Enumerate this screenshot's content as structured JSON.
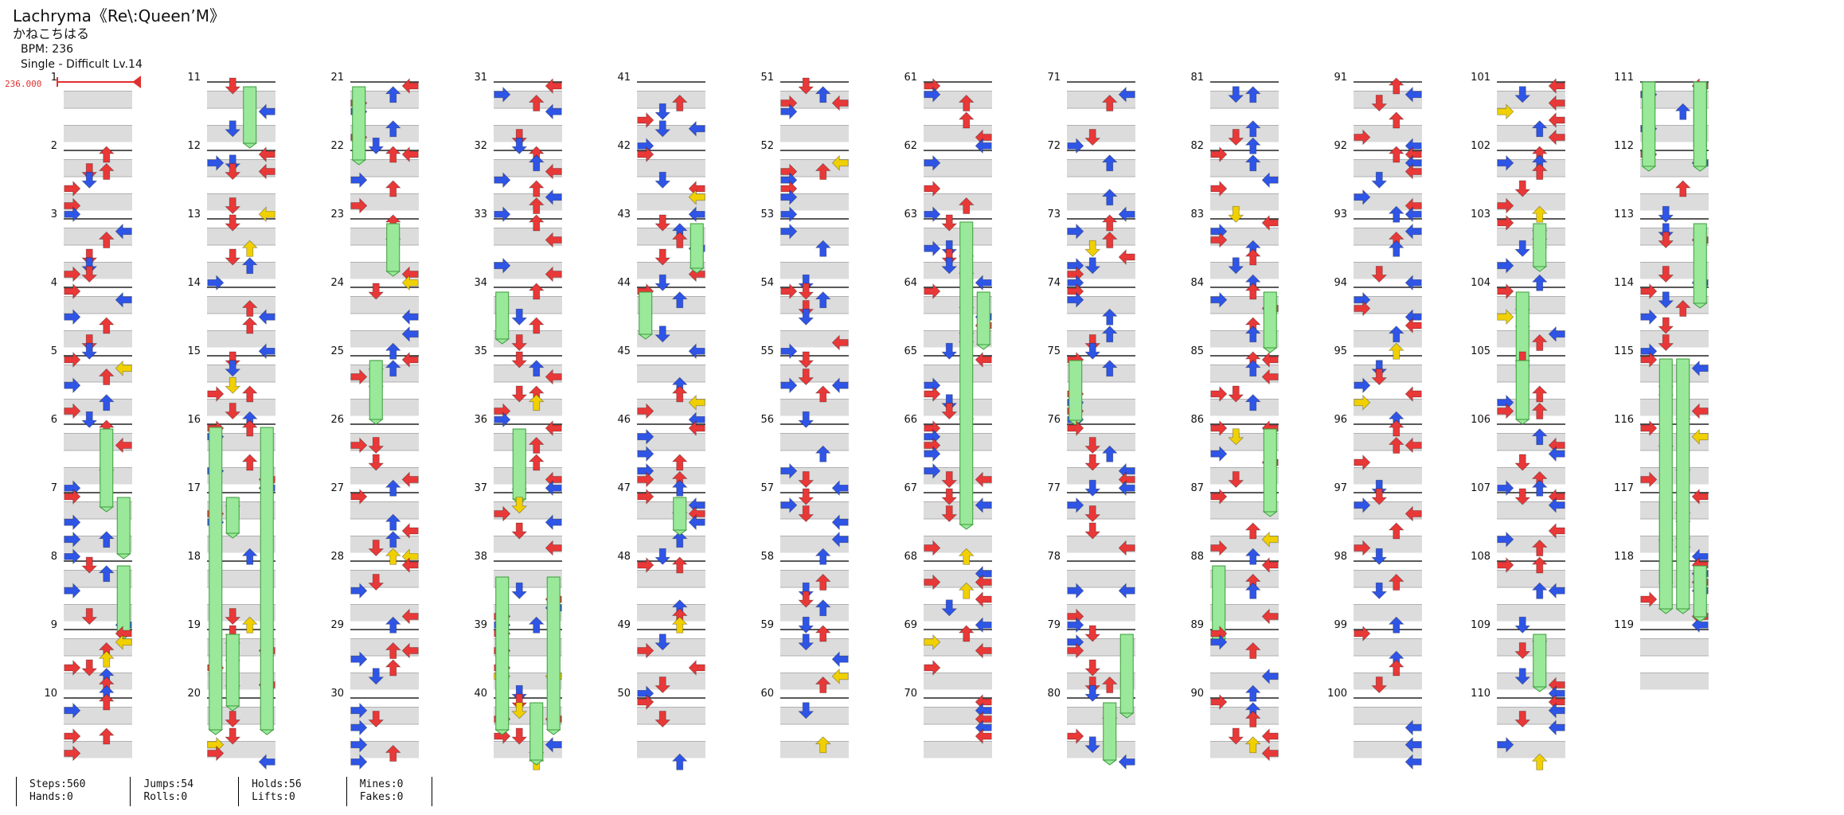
{
  "song": {
    "title": "Lachryma《Re\\:Queen’M》",
    "artist": "かねこちはる",
    "bpm_text": "BPM: 236",
    "difficulty_text": "Single - Difficult Lv.14"
  },
  "bpm_marker": "236.000",
  "measures": {
    "first": 1,
    "last": 119,
    "per_column": 10
  },
  "colors": {
    "red": "#e83838",
    "blue": "#2f55e6",
    "yellow": "#f0d000",
    "purple": "#a335e0",
    "hold": "#9ae89a",
    "hold_border": "#3c9c3c"
  },
  "stats": [
    {
      "top": "Steps:560",
      "bottom": "Hands:0"
    },
    {
      "top": "Jumps:54",
      "bottom": "Rolls:0"
    },
    {
      "top": "Holds:56",
      "bottom": "Lifts:0"
    },
    {
      "top": "Mines:0",
      "bottom": "Fakes:0"
    }
  ]
}
